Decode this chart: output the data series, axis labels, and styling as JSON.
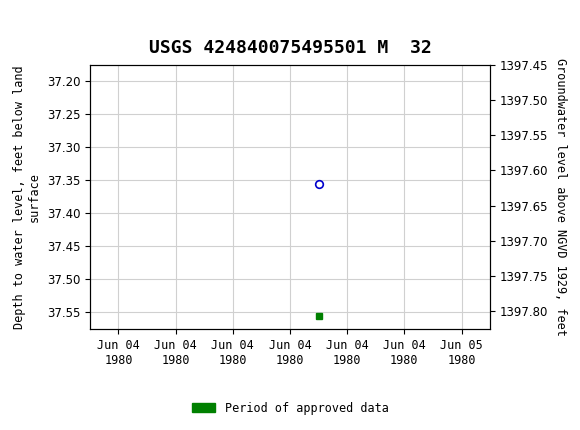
{
  "title": "USGS 424840075495501 M  32",
  "point_x": 3.5,
  "point_y": 37.355,
  "green_square_x": 3.5,
  "green_square_y": 37.555,
  "x_tick_labels": [
    "Jun 04\n1980",
    "Jun 04\n1980",
    "Jun 04\n1980",
    "Jun 04\n1980",
    "Jun 04\n1980",
    "Jun 04\n1980",
    "Jun 05\n1980"
  ],
  "x_tick_positions": [
    0,
    1,
    2,
    3,
    4,
    5,
    6
  ],
  "ylim_left": [
    37.575,
    37.175
  ],
  "ylim_right_bottom": 1397.45,
  "ylim_right_top": 1397.825,
  "yticks_left": [
    37.2,
    37.25,
    37.3,
    37.35,
    37.4,
    37.45,
    37.5,
    37.55
  ],
  "yticks_right": [
    1397.8,
    1397.75,
    1397.7,
    1397.65,
    1397.6,
    1397.55,
    1397.5,
    1397.45
  ],
  "ylabel_left": "Depth to water level, feet below land\nsurface",
  "ylabel_right": "Groundwater level above NGVD 1929, feet",
  "legend_label": "Period of approved data",
  "legend_color": "#008000",
  "header_color": "#006633",
  "circle_color": "#0000cc",
  "grid_color": "#d0d0d0",
  "bg_color": "#ffffff",
  "xlim": [
    -0.5,
    6.5
  ],
  "title_fontsize": 13,
  "axis_label_fontsize": 8.5,
  "tick_fontsize": 8.5
}
